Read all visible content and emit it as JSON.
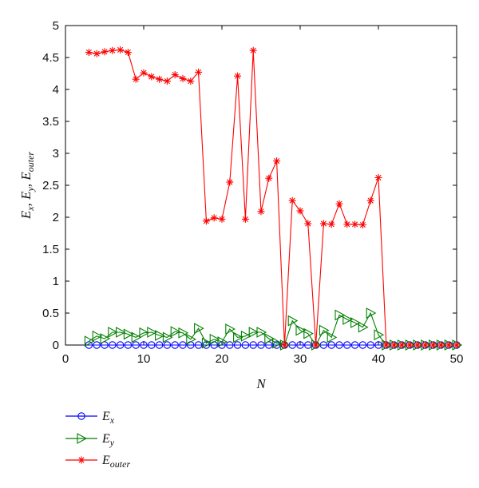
{
  "chart_data": {
    "type": "line",
    "title": "",
    "xlabel": "N",
    "ylabel": {
      "parts": [
        "E",
        "x",
        ", ",
        "E",
        "y",
        ", ",
        "E",
        "outer"
      ]
    },
    "xlim": [
      0,
      50
    ],
    "ylim": [
      0,
      5
    ],
    "xticks": [
      "0",
      "10",
      "20",
      "30",
      "40",
      "50"
    ],
    "yticks": [
      "0",
      "0.5",
      "1",
      "1.5",
      "2",
      "2.5",
      "3",
      "3.5",
      "4",
      "4.5",
      "5"
    ],
    "grid": false,
    "legend_position": "bottom-left",
    "series": [
      {
        "key": "ex",
        "name": {
          "base": "E",
          "sub": "x"
        },
        "color": "#0000ff",
        "marker": "circle",
        "x": [
          3,
          4,
          5,
          6,
          7,
          8,
          9,
          10,
          11,
          12,
          13,
          14,
          15,
          16,
          17,
          18,
          19,
          20,
          21,
          22,
          23,
          24,
          25,
          26,
          27,
          28,
          29,
          30,
          31,
          32,
          33,
          34,
          35,
          36,
          37,
          38,
          39,
          40,
          41,
          42,
          43,
          44,
          45,
          46,
          47,
          48,
          49,
          50
        ],
        "y": [
          0,
          0,
          0,
          0,
          0,
          0,
          0,
          0,
          0,
          0,
          0,
          0,
          0,
          0,
          0,
          0,
          0,
          0,
          0,
          0,
          0,
          0,
          0,
          0,
          0,
          0,
          0,
          0,
          0,
          0,
          0,
          0,
          0,
          0,
          0,
          0,
          0,
          0,
          0,
          0,
          0,
          0,
          0,
          0,
          0,
          0,
          0,
          0
        ]
      },
      {
        "key": "ey",
        "name": {
          "base": "E",
          "sub": "y"
        },
        "color": "#008000",
        "marker": "triangle-right",
        "x": [
          3,
          4,
          5,
          6,
          7,
          8,
          9,
          10,
          11,
          12,
          13,
          14,
          15,
          16,
          17,
          18,
          19,
          20,
          21,
          22,
          23,
          24,
          25,
          26,
          27,
          28,
          29,
          30,
          31,
          32,
          33,
          34,
          35,
          36,
          37,
          38,
          39,
          40,
          41,
          42,
          43,
          44,
          45,
          46,
          47,
          48,
          49,
          50
        ],
        "y": [
          0.06,
          0.14,
          0.1,
          0.2,
          0.2,
          0.17,
          0.12,
          0.19,
          0.2,
          0.15,
          0.12,
          0.21,
          0.19,
          0.09,
          0.26,
          0.03,
          0.09,
          0.05,
          0.25,
          0.12,
          0.14,
          0.2,
          0.2,
          0.1,
          0.03,
          0.0,
          0.38,
          0.23,
          0.18,
          0.0,
          0.23,
          0.12,
          0.47,
          0.4,
          0.35,
          0.28,
          0.5,
          0.16,
          0,
          0,
          0,
          0,
          0,
          0,
          0,
          0,
          0,
          0
        ]
      },
      {
        "key": "eouter",
        "name": {
          "base": "E",
          "sub": "outer"
        },
        "color": "#ff0000",
        "marker": "star",
        "x": [
          3,
          4,
          5,
          6,
          7,
          8,
          9,
          10,
          11,
          12,
          13,
          14,
          15,
          16,
          17,
          18,
          19,
          20,
          21,
          22,
          23,
          24,
          25,
          26,
          27,
          28,
          29,
          30,
          31,
          32,
          33,
          34,
          35,
          36,
          37,
          38,
          39,
          40,
          41,
          42,
          43,
          44,
          45,
          46,
          47,
          48,
          49,
          50
        ],
        "y": [
          4.58,
          4.56,
          4.59,
          4.61,
          4.62,
          4.58,
          4.16,
          4.26,
          4.2,
          4.16,
          4.13,
          4.23,
          4.17,
          4.13,
          4.27,
          1.94,
          1.99,
          1.97,
          2.55,
          4.21,
          1.97,
          4.61,
          2.09,
          2.61,
          2.88,
          0.0,
          2.26,
          2.1,
          1.9,
          0.0,
          1.9,
          1.89,
          2.21,
          1.89,
          1.89,
          1.88,
          2.26,
          2.62,
          0,
          0,
          0,
          0,
          0,
          0,
          0,
          0,
          0,
          0
        ]
      }
    ]
  }
}
